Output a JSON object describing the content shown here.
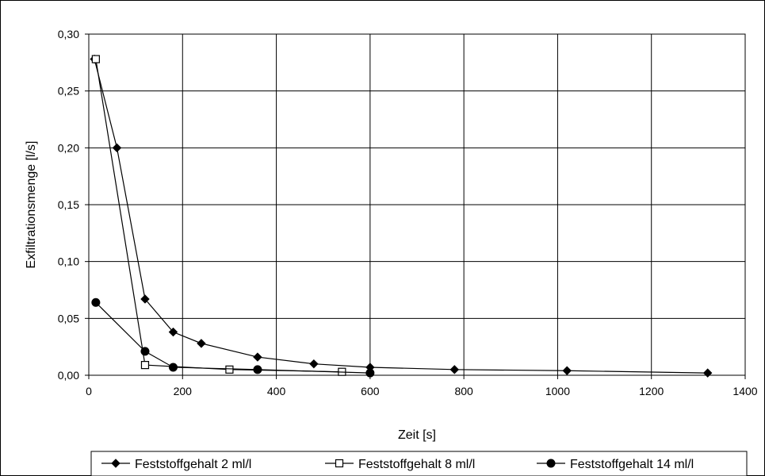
{
  "chart_data": {
    "type": "line",
    "xlabel": "Zeit [s]",
    "ylabel": "Exfiltrationsmenge [l/s]",
    "xlim": [
      0,
      1400
    ],
    "ylim": [
      0,
      0.3
    ],
    "xticks": [
      0,
      200,
      400,
      600,
      800,
      1000,
      1200,
      1400
    ],
    "xtick_labels": [
      "0",
      "200",
      "400",
      "600",
      "800",
      "1000",
      "1200",
      "1400"
    ],
    "yticks": [
      0,
      0.05,
      0.1,
      0.15,
      0.2,
      0.25,
      0.3
    ],
    "ytick_labels": [
      "0,00",
      "0,05",
      "0,10",
      "0,15",
      "0,20",
      "0,25",
      "0,30"
    ],
    "grid": true,
    "legend_position": "bottom",
    "series": [
      {
        "name": "Feststoffgehalt 2 ml/l",
        "marker": "diamond",
        "color": "#000000",
        "x": [
          12,
          60,
          120,
          180,
          240,
          360,
          480,
          600,
          780,
          1020,
          1320
        ],
        "y": [
          0.278,
          0.2,
          0.067,
          0.038,
          0.028,
          0.016,
          0.01,
          0.007,
          0.005,
          0.004,
          0.002
        ]
      },
      {
        "name": "Feststoffgehalt 8 ml/l",
        "marker": "square-open",
        "color": "#000000",
        "x": [
          15,
          120,
          300,
          540
        ],
        "y": [
          0.278,
          0.009,
          0.005,
          0.003
        ]
      },
      {
        "name": "Feststoffgehalt 14 ml/l",
        "marker": "circle",
        "color": "#000000",
        "x": [
          15,
          120,
          180,
          360,
          600
        ],
        "y": [
          0.064,
          0.021,
          0.007,
          0.005,
          0.002
        ]
      }
    ]
  }
}
